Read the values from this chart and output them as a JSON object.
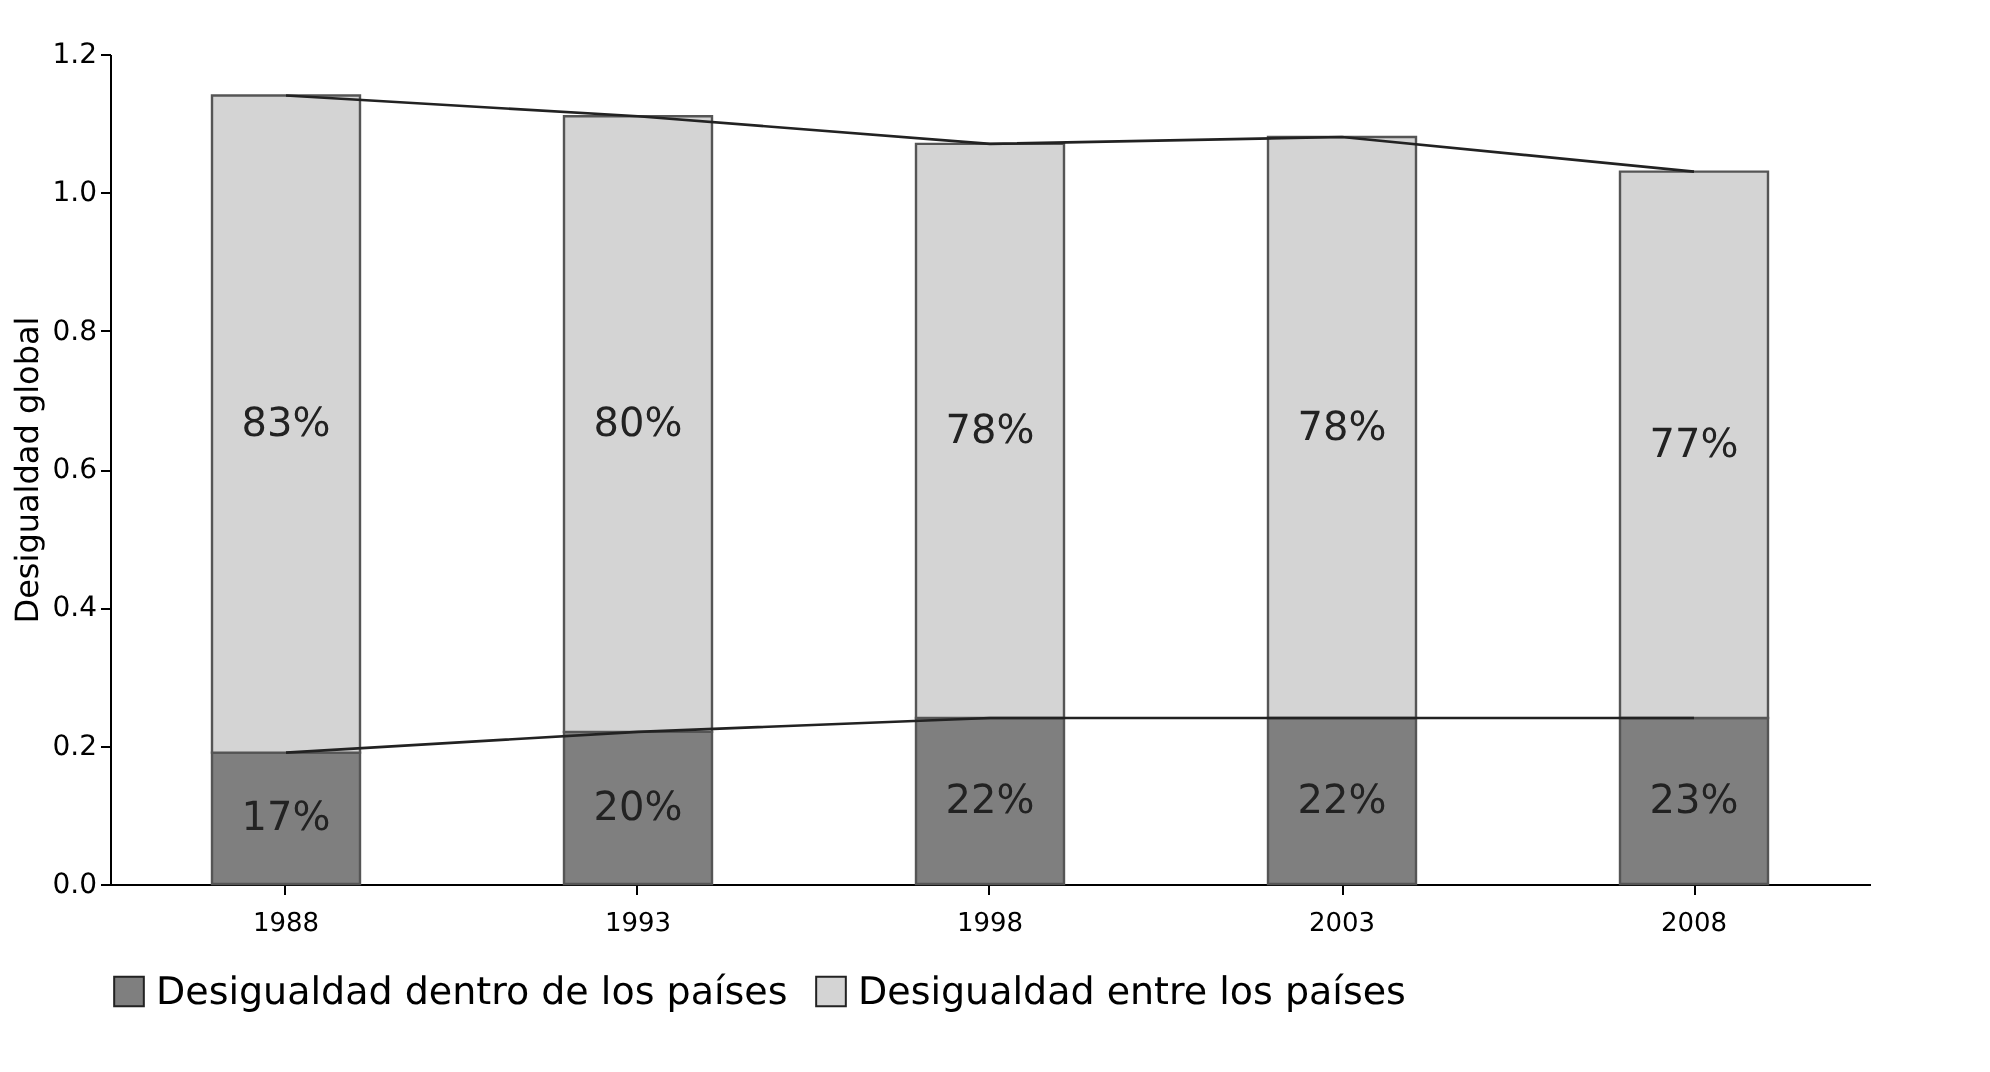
{
  "chart_data": {
    "type": "bar",
    "ylabel": "Desigualdad global",
    "categories": [
      "1988",
      "1993",
      "1998",
      "2003",
      "2008"
    ],
    "stacked": true,
    "legend": "bottom",
    "grid": false,
    "ylim": [
      0,
      1.2
    ],
    "yticks": [
      {
        "value": 0,
        "label": "0.0"
      },
      {
        "value": 0.2,
        "label": "0.2"
      },
      {
        "value": 0.4,
        "label": "0.4"
      },
      {
        "value": 0.6,
        "label": "0.6"
      },
      {
        "value": 0.8,
        "label": "0.8"
      },
      {
        "value": 1,
        "label": "1.0"
      },
      {
        "value": 1.2,
        "label": "1.2"
      }
    ],
    "series": [
      {
        "name": "Desigualdad dentro de los países",
        "color": "#7f7f7f",
        "values": [
          0.19,
          0.22,
          0.24,
          0.24,
          0.24
        ]
      },
      {
        "name": "Desigualdad entre los países",
        "color": "#d4d4d4",
        "values": [
          0.95,
          0.89,
          0.83,
          0.84,
          0.79
        ]
      },
      {
        "type": "line",
        "color": "#222222",
        "values": [
          0.19,
          0.22,
          0.24,
          0.24,
          0.24
        ]
      },
      {
        "type": "line",
        "color": "#222222",
        "values": [
          1.14,
          1.11,
          1.07,
          1.08,
          1.03
        ]
      }
    ],
    "annotations": [
      "17%",
      "20%",
      "22%",
      "22%",
      "23%",
      "83%",
      "80%",
      "78%",
      "78%",
      "77%"
    ]
  }
}
